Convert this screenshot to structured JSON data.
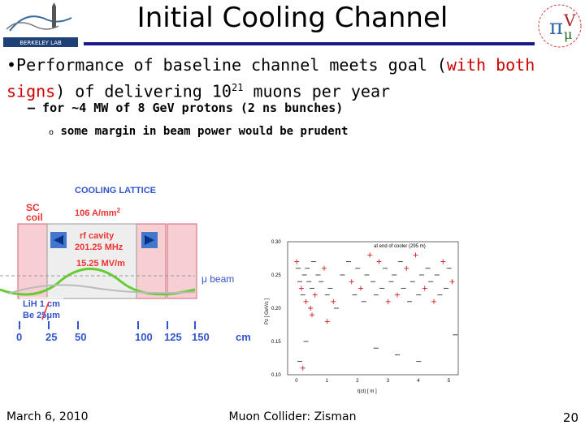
{
  "title": "Initial Cooling Channel",
  "logos": {
    "left_caption": "BERKELEY LAB",
    "right_symbol": "π",
    "right_letter": "V",
    "right_letter2": "μ"
  },
  "bullet": {
    "part1": "Performance of baseline channel meets goal (",
    "red_part": "with both signs",
    "part2": ") of delivering 10",
    "sup": "21",
    "part3": " muons per year"
  },
  "sub1": "— for ~4 MW of 8 GeV protons (2 ns bunches)",
  "sub2_bullet": "o",
  "sub2": "some margin in beam power would be prudent",
  "lattice": {
    "title": "COOLING LATTICE",
    "sc_coil": "SC",
    "sc_coil2": "coil",
    "current": "106 A/mm",
    "current_sup": "2",
    "rf_cavity": "rf cavity",
    "rf_freq": "201.25 MHz",
    "gradient": "15.25 MV/m",
    "mu_beam": "μ beam",
    "lih": "LiH 1 cm",
    "be": "Be 25μm",
    "ticks": [
      "0",
      "25",
      "50",
      "100",
      "125",
      "150",
      "cm"
    ],
    "colors": {
      "coil": "#f7cfd3",
      "cavity": "#d8d8d8",
      "wave": "#66cc33",
      "accent": "#3355cc",
      "red": "#ee3333"
    }
  },
  "chart_data": {
    "type": "scatter",
    "title": "at end of cooler (295 m)",
    "xlabel": "t(ct) [ m ]",
    "ylabel": "Pz [ GeV/c ]",
    "xlim": [
      -0.3,
      5.3
    ],
    "ylim": [
      0.1,
      0.3
    ],
    "x_ticks": [
      "0",
      "1",
      "2",
      "3",
      "4",
      "5"
    ],
    "y_ticks": [
      "0.10",
      "0.15",
      "0.20",
      "0.25",
      "0.30"
    ],
    "series": [
      {
        "values_x": [
          0.0,
          0.05,
          0.1,
          0.15,
          0.2,
          0.25,
          0.3,
          0.35,
          0.4,
          0.45,
          0.5,
          0.55,
          0.6,
          0.7,
          0.8,
          0.9,
          1.0,
          1.1,
          1.2,
          1.5,
          1.7,
          1.8,
          1.9,
          2.0,
          2.1,
          2.2,
          2.3,
          2.4,
          2.5,
          2.6,
          2.7,
          2.8,
          2.9,
          3.0,
          3.1,
          3.2,
          3.3,
          3.4,
          3.5,
          3.6,
          3.7,
          3.8,
          3.9,
          4.0,
          4.1,
          4.2,
          4.3,
          4.4,
          4.5,
          4.6,
          4.7,
          4.8,
          4.9,
          5.0,
          5.1,
          0.1,
          0.3,
          1.0,
          2.6,
          5.2,
          0.2,
          3.3,
          4.0,
          0.5,
          1.3
        ],
        "values_y": [
          0.27,
          0.26,
          0.24,
          0.23,
          0.22,
          0.25,
          0.21,
          0.26,
          0.24,
          0.2,
          0.23,
          0.27,
          0.22,
          0.25,
          0.24,
          0.26,
          0.22,
          0.23,
          0.21,
          0.25,
          0.27,
          0.24,
          0.22,
          0.26,
          0.23,
          0.21,
          0.25,
          0.28,
          0.24,
          0.22,
          0.27,
          0.23,
          0.26,
          0.21,
          0.24,
          0.25,
          0.22,
          0.27,
          0.23,
          0.26,
          0.21,
          0.24,
          0.28,
          0.22,
          0.25,
          0.23,
          0.26,
          0.24,
          0.21,
          0.25,
          0.22,
          0.27,
          0.23,
          0.26,
          0.24,
          0.12,
          0.15,
          0.18,
          0.14,
          0.16,
          0.11,
          0.13,
          0.12,
          0.19,
          0.2
        ]
      }
    ]
  },
  "footer": {
    "date": "March 6, 2010",
    "center": "Muon Collider: Zisman",
    "page": "20"
  }
}
